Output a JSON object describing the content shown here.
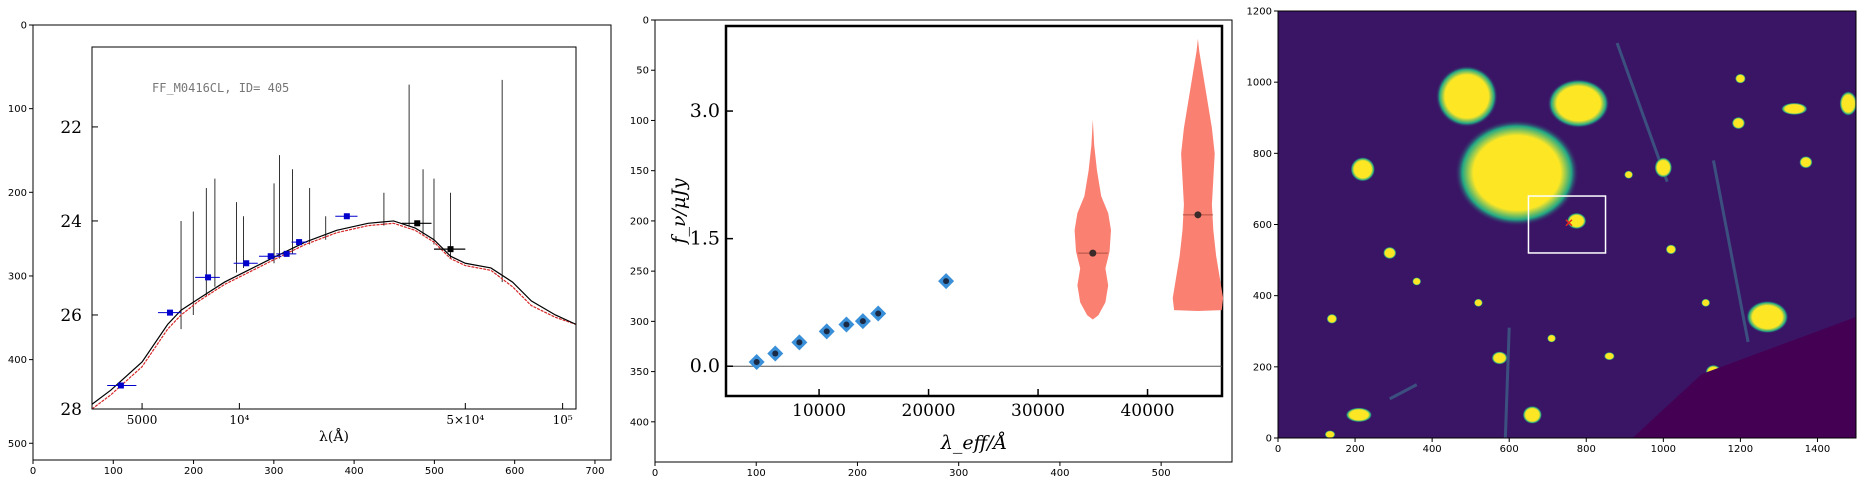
{
  "colors": {
    "frame": "#000000",
    "model_black": "#000000",
    "model_red": "#d62728",
    "phot_blue": "#0000cc",
    "violin": "#fa8072",
    "diamond": "#3a8fd9",
    "viridis_bg": "#3a1566",
    "viridis_dark": "#440154",
    "viridis_yellow": "#fde725",
    "viridis_green": "#22a884",
    "box": "#ffffff",
    "marker": "#e8281c"
  },
  "chart_data": [
    {
      "type": "line",
      "description_panel": "panel-1",
      "label": "FF_M0416CL, ID= 405",
      "outer_axes": {
        "xlim": [
          0,
          720
        ],
        "ylim": [
          520,
          0
        ],
        "xticks": [
          0,
          100,
          200,
          300,
          400,
          500,
          600,
          700
        ],
        "yticks": [
          0,
          100,
          200,
          300,
          400,
          500
        ],
        "xtick_labels": [
          "0",
          "100",
          "200",
          "300",
          "400",
          "500",
          "600",
          "700"
        ],
        "ytick_labels": [
          "0",
          "100",
          "200",
          "300",
          "400",
          "500"
        ]
      },
      "inner_axes": {
        "xlabel": "λ(Å)",
        "xscale": "log",
        "xlim": [
          3500,
          110000
        ],
        "ylim": [
          28,
          20.3
        ],
        "xtick_values": [
          5000,
          10000,
          50000,
          100000
        ],
        "xtick_labels": [
          "5000",
          "10⁴",
          "5×10⁴",
          "10⁵"
        ],
        "ytick_values": [
          22,
          24,
          26,
          28
        ],
        "ytick_labels": [
          "22",
          "24",
          "26",
          "28"
        ]
      },
      "photometry": [
        {
          "x": 4300,
          "y": 27.5,
          "xerr": [
            3900,
            4800
          ],
          "yerr": 0.05
        },
        {
          "x": 6100,
          "y": 25.95,
          "xerr": [
            5600,
            6600
          ],
          "yerr": 0.05
        },
        {
          "x": 8000,
          "y": 25.2,
          "xerr": [
            7300,
            8700
          ],
          "yerr": 0.05
        },
        {
          "x": 10500,
          "y": 24.9,
          "xerr": [
            9600,
            11400
          ],
          "yerr": 0.05
        },
        {
          "x": 12500,
          "y": 24.75,
          "xerr": [
            11500,
            13500
          ],
          "yerr": 0.05
        },
        {
          "x": 14000,
          "y": 24.7,
          "xerr": [
            13000,
            15000
          ],
          "yerr": 0.05
        },
        {
          "x": 15300,
          "y": 24.45,
          "xerr": [
            14500,
            16200
          ],
          "yerr": 0.05
        },
        {
          "x": 21500,
          "y": 23.9,
          "xerr": [
            19800,
            23200
          ],
          "yerr": 0.05
        }
      ],
      "irac": [
        {
          "x": 35500,
          "y": 24.05,
          "xerr": [
            31800,
            39300
          ],
          "yerr": 0.1
        },
        {
          "x": 45000,
          "y": 24.6,
          "xerr": [
            40000,
            50000
          ],
          "yerr": 0.1
        }
      ],
      "model_black": [
        [
          3500,
          27.9
        ],
        [
          4000,
          27.6
        ],
        [
          5000,
          27.0
        ],
        [
          6000,
          26.2
        ],
        [
          6600,
          25.9
        ],
        [
          7500,
          25.65
        ],
        [
          9000,
          25.3
        ],
        [
          11000,
          25.0
        ],
        [
          13000,
          24.75
        ],
        [
          16000,
          24.45
        ],
        [
          20000,
          24.2
        ],
        [
          25000,
          24.05
        ],
        [
          30000,
          24.0
        ],
        [
          35000,
          24.15
        ],
        [
          40000,
          24.4
        ],
        [
          45000,
          24.75
        ],
        [
          50000,
          24.9
        ],
        [
          60000,
          25.0
        ],
        [
          70000,
          25.3
        ],
        [
          80000,
          25.7
        ],
        [
          95000,
          26.0
        ],
        [
          110000,
          26.2
        ]
      ],
      "model_red": [
        [
          3500,
          28.0
        ],
        [
          4000,
          27.7
        ],
        [
          5000,
          27.1
        ],
        [
          6000,
          26.3
        ],
        [
          6600,
          26.0
        ],
        [
          7500,
          25.7
        ],
        [
          9000,
          25.35
        ],
        [
          11000,
          25.05
        ],
        [
          13000,
          24.8
        ],
        [
          16000,
          24.5
        ],
        [
          20000,
          24.25
        ],
        [
          25000,
          24.1
        ],
        [
          30000,
          24.05
        ],
        [
          35000,
          24.2
        ],
        [
          40000,
          24.45
        ],
        [
          45000,
          24.8
        ],
        [
          50000,
          24.95
        ],
        [
          60000,
          25.05
        ],
        [
          70000,
          25.4
        ],
        [
          80000,
          25.8
        ],
        [
          95000,
          26.05
        ],
        [
          110000,
          26.2
        ]
      ],
      "emission_lines": [
        {
          "x": 6600,
          "top": 24.0,
          "bottom": 26.3
        },
        {
          "x": 7200,
          "top": 23.8,
          "bottom": 26.0
        },
        {
          "x": 7900,
          "top": 23.3,
          "bottom": 25.6
        },
        {
          "x": 8400,
          "top": 23.1,
          "bottom": 25.4
        },
        {
          "x": 9800,
          "top": 23.6,
          "bottom": 25.1
        },
        {
          "x": 10300,
          "top": 23.9,
          "bottom": 25.0
        },
        {
          "x": 12800,
          "top": 23.2,
          "bottom": 24.9
        },
        {
          "x": 13300,
          "top": 22.6,
          "bottom": 24.8
        },
        {
          "x": 14600,
          "top": 22.9,
          "bottom": 24.7
        },
        {
          "x": 16500,
          "top": 23.3,
          "bottom": 24.5
        },
        {
          "x": 18500,
          "top": 23.9,
          "bottom": 24.4
        },
        {
          "x": 28000,
          "top": 23.4,
          "bottom": 24.1
        },
        {
          "x": 33500,
          "top": 21.1,
          "bottom": 24.1
        },
        {
          "x": 37000,
          "top": 22.9,
          "bottom": 24.3
        },
        {
          "x": 40000,
          "top": 23.1,
          "bottom": 24.5
        },
        {
          "x": 45000,
          "top": 23.4,
          "bottom": 24.8
        },
        {
          "x": 65000,
          "top": 21.0,
          "bottom": 25.3
        }
      ]
    },
    {
      "type": "scatter",
      "description_panel": "panel-2",
      "outer_axes": {
        "xlim": [
          0,
          570
        ],
        "ylim": [
          440,
          0
        ],
        "xticks": [
          0,
          100,
          200,
          300,
          400,
          500
        ],
        "yticks": [
          0,
          50,
          100,
          150,
          200,
          250,
          300,
          350,
          400
        ],
        "xtick_labels": [
          "0",
          "100",
          "200",
          "300",
          "400",
          "500"
        ],
        "ytick_labels": [
          "0",
          "50",
          "100",
          "150",
          "200",
          "250",
          "300",
          "350",
          "400"
        ]
      },
      "inner_axes": {
        "xlabel": "λ_eff/Å",
        "ylabel": "f_ν/μJy",
        "xlim": [
          1500,
          46800
        ],
        "ylim": [
          -0.35,
          4.0
        ],
        "xtick_values": [
          10000,
          20000,
          30000,
          40000
        ],
        "xtick_labels": [
          "10000",
          "20000",
          "30000",
          "40000"
        ],
        "ytick_values": [
          0.0,
          1.5,
          3.0
        ],
        "ytick_labels": [
          "0.0",
          "1.5",
          "3.0"
        ]
      },
      "points": [
        {
          "x": 4300,
          "y": 0.05
        },
        {
          "x": 6000,
          "y": 0.15
        },
        {
          "x": 8200,
          "y": 0.28
        },
        {
          "x": 10700,
          "y": 0.41
        },
        {
          "x": 12500,
          "y": 0.49
        },
        {
          "x": 14000,
          "y": 0.53
        },
        {
          "x": 15400,
          "y": 0.62
        },
        {
          "x": 21600,
          "y": 1.0
        }
      ],
      "violins": [
        {
          "x": 35000,
          "center": 1.33,
          "profile": [
            [
              0.55,
              0.0
            ],
            [
              0.6,
              0.2
            ],
            [
              0.75,
              0.45
            ],
            [
              0.95,
              0.55
            ],
            [
              1.15,
              0.45
            ],
            [
              1.35,
              0.6
            ],
            [
              1.6,
              0.65
            ],
            [
              1.8,
              0.55
            ],
            [
              2.0,
              0.3
            ],
            [
              2.3,
              0.15
            ],
            [
              2.6,
              0.05
            ],
            [
              2.9,
              0.0
            ]
          ]
        },
        {
          "x": 44600,
          "center": 1.78,
          "profile": [
            [
              0.65,
              0.0
            ],
            [
              0.66,
              0.85
            ],
            [
              0.8,
              0.9
            ],
            [
              1.0,
              0.8
            ],
            [
              1.3,
              0.65
            ],
            [
              1.6,
              0.55
            ],
            [
              1.9,
              0.5
            ],
            [
              2.2,
              0.55
            ],
            [
              2.5,
              0.6
            ],
            [
              2.8,
              0.5
            ],
            [
              3.1,
              0.35
            ],
            [
              3.4,
              0.2
            ],
            [
              3.7,
              0.05
            ],
            [
              3.85,
              0.0
            ]
          ]
        }
      ]
    },
    {
      "type": "heatmap",
      "description_panel": "panel-3",
      "axes": {
        "xlim": [
          0,
          1500
        ],
        "ylim": [
          0,
          1200
        ],
        "xtick_values": [
          0,
          200,
          400,
          600,
          800,
          1000,
          1200,
          1400
        ],
        "xtick_labels": [
          "0",
          "200",
          "400",
          "600",
          "800",
          "1000",
          "1200",
          "1400"
        ],
        "ytick_values": [
          0,
          200,
          400,
          600,
          800,
          1000,
          1200
        ],
        "ytick_labels": [
          "0",
          "200",
          "400",
          "600",
          "800",
          "1000",
          "1200"
        ]
      },
      "box": {
        "x0": 650,
        "x1": 850,
        "y0": 520,
        "y1": 680
      },
      "marker": {
        "x": 755,
        "y": 605
      },
      "sources": [
        {
          "x": 490,
          "y": 960,
          "rx": 70,
          "ry": 75
        },
        {
          "x": 780,
          "y": 940,
          "rx": 70,
          "ry": 60
        },
        {
          "x": 1000,
          "y": 760,
          "rx": 20,
          "ry": 25
        },
        {
          "x": 1200,
          "y": 1010,
          "rx": 12,
          "ry": 12
        },
        {
          "x": 1340,
          "y": 925,
          "rx": 30,
          "ry": 15
        },
        {
          "x": 1480,
          "y": 940,
          "rx": 20,
          "ry": 30
        },
        {
          "x": 620,
          "y": 745,
          "rx": 140,
          "ry": 130
        },
        {
          "x": 220,
          "y": 755,
          "rx": 28,
          "ry": 30
        },
        {
          "x": 1270,
          "y": 340,
          "rx": 48,
          "ry": 40
        },
        {
          "x": 775,
          "y": 610,
          "rx": 22,
          "ry": 20
        },
        {
          "x": 575,
          "y": 225,
          "rx": 18,
          "ry": 16
        },
        {
          "x": 660,
          "y": 65,
          "rx": 22,
          "ry": 22
        },
        {
          "x": 210,
          "y": 65,
          "rx": 30,
          "ry": 18
        },
        {
          "x": 1005,
          "y": 60,
          "rx": 15,
          "ry": 15
        },
        {
          "x": 1130,
          "y": 185,
          "rx": 18,
          "ry": 18
        },
        {
          "x": 1195,
          "y": 885,
          "rx": 15,
          "ry": 15
        },
        {
          "x": 1370,
          "y": 775,
          "rx": 15,
          "ry": 15
        },
        {
          "x": 910,
          "y": 740,
          "rx": 10,
          "ry": 10
        },
        {
          "x": 860,
          "y": 230,
          "rx": 12,
          "ry": 10
        },
        {
          "x": 1110,
          "y": 380,
          "rx": 10,
          "ry": 10
        },
        {
          "x": 1020,
          "y": 530,
          "rx": 12,
          "ry": 12
        },
        {
          "x": 290,
          "y": 520,
          "rx": 15,
          "ry": 15
        },
        {
          "x": 140,
          "y": 335,
          "rx": 12,
          "ry": 12
        },
        {
          "x": 135,
          "y": 10,
          "rx": 12,
          "ry": 10
        },
        {
          "x": 360,
          "y": 440,
          "rx": 10,
          "ry": 10
        },
        {
          "x": 520,
          "y": 380,
          "rx": 10,
          "ry": 10
        },
        {
          "x": 710,
          "y": 280,
          "rx": 10,
          "ry": 10
        }
      ],
      "streaks": [
        {
          "x1": 880,
          "y1": 1110,
          "x2": 1010,
          "y2": 720
        },
        {
          "x1": 1130,
          "y1": 780,
          "x2": 1220,
          "y2": 270
        },
        {
          "x1": 290,
          "y1": 110,
          "x2": 360,
          "y2": 150
        },
        {
          "x1": 590,
          "y1": 0,
          "x2": 600,
          "y2": 310
        }
      ]
    }
  ]
}
